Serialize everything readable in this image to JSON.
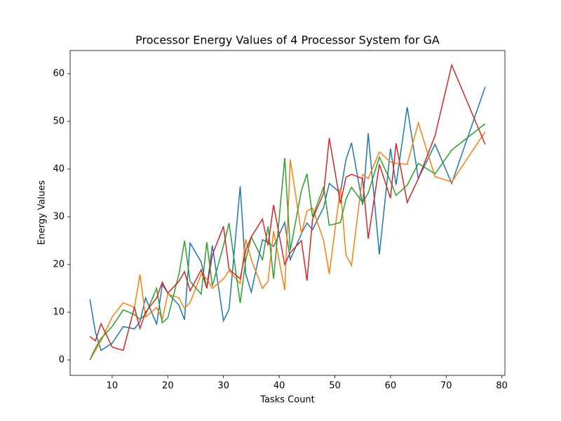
{
  "chart_data": {
    "type": "line",
    "title": "Processor Energy Values of 4 Processor System for GA",
    "x_label": "Tasks Count",
    "y_label": "Energy Values",
    "x": [
      6,
      7,
      8,
      10,
      12,
      14,
      15,
      16,
      18,
      19,
      20,
      22,
      23,
      24,
      26,
      27,
      28,
      30,
      31,
      33,
      34,
      35,
      37,
      38,
      39,
      41,
      42,
      44,
      45,
      46,
      48,
      49,
      51,
      52,
      53,
      55,
      56,
      58,
      60,
      61,
      63,
      65,
      68,
      71,
      77
    ],
    "series": [
      {
        "color": "#1f77b4",
        "values": [
          12.7,
          5.8,
          2,
          3.5,
          7,
          6.5,
          8,
          13,
          7.5,
          15.8,
          14,
          11.5,
          8.4,
          24.5,
          20.5,
          15,
          24,
          8.2,
          10.6,
          36.4,
          18,
          14.2,
          25.2,
          24.6,
          23.8,
          28.8,
          21,
          26.5,
          28.7,
          27.3,
          32,
          37,
          35,
          42,
          45.5,
          32.5,
          47.5,
          22.1,
          44.3,
          36.7,
          53,
          38,
          45.2,
          37,
          57.2
        ]
      },
      {
        "color": "#ff7f0e",
        "values": [
          0,
          2,
          4,
          9,
          12,
          11,
          17.9,
          9,
          11,
          8.5,
          13.8,
          13,
          10.8,
          12,
          18,
          17,
          15,
          17,
          18.7,
          16,
          25.3,
          21,
          15,
          16.5,
          27,
          14.7,
          42,
          26.5,
          31.2,
          31.8,
          25,
          18,
          36,
          22,
          19.8,
          38.9,
          38,
          43.6,
          41.5,
          41.2,
          41,
          49.7,
          38.4,
          37.3,
          47.8
        ]
      },
      {
        "color": "#2ca02c",
        "values": [
          0,
          2.5,
          4.5,
          7,
          10.5,
          9.5,
          8.5,
          9.5,
          15,
          7.8,
          8.8,
          18,
          25,
          16.5,
          13.8,
          24.7,
          15.5,
          24,
          28.7,
          11.9,
          21,
          25.8,
          21,
          28,
          17,
          42.3,
          23,
          35.5,
          39,
          30,
          36.3,
          28.2,
          28.8,
          33.7,
          36.2,
          33,
          35,
          42.5,
          37.5,
          34.5,
          36.6,
          41.2,
          39,
          44,
          49.5
        ]
      },
      {
        "color": "#d62728",
        "values": [
          4.9,
          4,
          7.6,
          2.7,
          2,
          11,
          6.6,
          10,
          13,
          16.3,
          14,
          16.5,
          18.5,
          14.5,
          18.9,
          15,
          22,
          28,
          19,
          17,
          23,
          25.8,
          29.5,
          24,
          32.5,
          20,
          22.5,
          25,
          16.6,
          29.5,
          35,
          46.5,
          32.8,
          38.3,
          38.9,
          38,
          25.4,
          41,
          33.9,
          45.4,
          33,
          38,
          47,
          61.8,
          45.2
        ]
      }
    ],
    "xlim": [
      2.45,
      80.55
    ],
    "xticks": [
      10,
      20,
      30,
      40,
      50,
      60,
      70,
      80
    ],
    "ylim": [
      -3.24,
      64.85
    ],
    "yticks": [
      0,
      10,
      20,
      30,
      40,
      50,
      60
    ],
    "grid": false
  }
}
